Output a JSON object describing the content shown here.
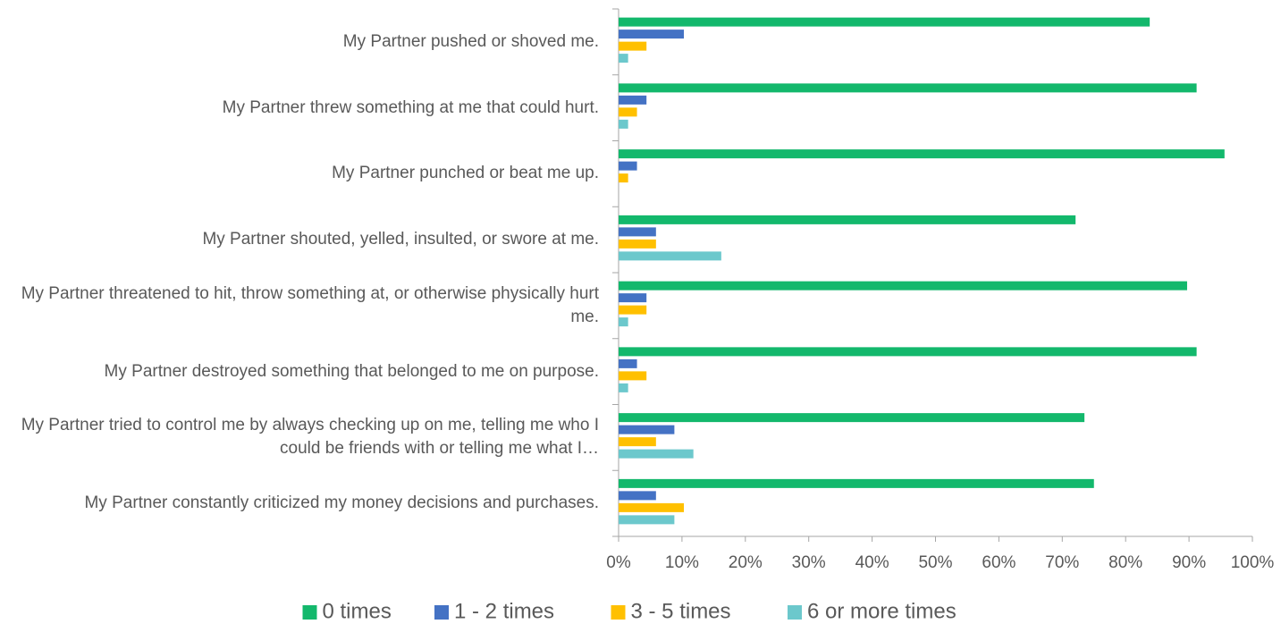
{
  "chart_data": {
    "type": "hbar",
    "categories": [
      "My Partner pushed or shoved me.",
      "My Partner threw something at me that could hurt.",
      "My Partner punched or beat me up.",
      "My Partner shouted, yelled, insulted, or swore at me.",
      "My Partner threatened to hit, throw something at, or otherwise physically hurt me.",
      "My Partner destroyed something that belonged to me on purpose.",
      "My Partner tried to control me by always checking up on me, telling me who I could be friends with or telling me what I…",
      "My Partner constantly criticized my money decisions and purchases."
    ],
    "series": [
      {
        "name": "0 times",
        "color": "#13b86c",
        "values": [
          83.8,
          91.2,
          95.6,
          72.1,
          89.7,
          91.2,
          73.5,
          75.0
        ]
      },
      {
        "name": "1 - 2 times",
        "color": "#4472c4",
        "values": [
          10.3,
          4.4,
          2.9,
          5.9,
          4.4,
          2.9,
          8.8,
          5.9
        ]
      },
      {
        "name": "3 - 5 times",
        "color": "#ffc000",
        "values": [
          4.4,
          2.9,
          1.5,
          5.9,
          4.4,
          4.4,
          5.9,
          10.3
        ]
      },
      {
        "name": "6 or more times",
        "color": "#6cc8cc",
        "values": [
          1.5,
          1.5,
          0,
          16.2,
          1.5,
          1.5,
          11.8,
          8.8
        ]
      }
    ],
    "xlim": [
      0,
      100
    ],
    "xticks": [
      {
        "value": 0,
        "label": "0%"
      },
      {
        "value": 10,
        "label": "10%"
      },
      {
        "value": 20,
        "label": "20%"
      },
      {
        "value": 30,
        "label": "30%"
      },
      {
        "value": 40,
        "label": "40%"
      },
      {
        "value": 50,
        "label": "50%"
      },
      {
        "value": 60,
        "label": "60%"
      },
      {
        "value": 70,
        "label": "70%"
      },
      {
        "value": 80,
        "label": "80%"
      },
      {
        "value": 90,
        "label": "90%"
      },
      {
        "value": 100,
        "label": "100%"
      }
    ],
    "legend": "bottom"
  }
}
